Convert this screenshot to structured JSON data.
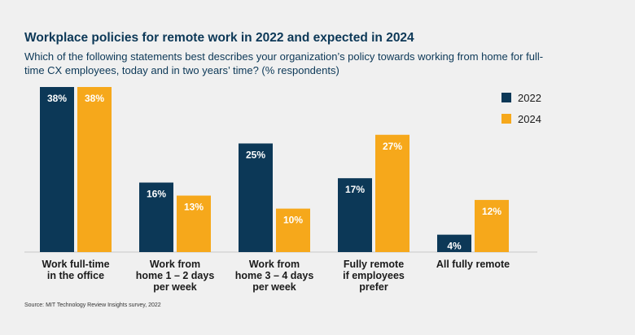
{
  "chart_data": {
    "type": "bar",
    "title": "Workplace policies for remote work in 2022 and expected in 2024",
    "subtitle": "Which of the following statements best describes your organization’s policy towards working from home for full-time CX employees, today and in two years’ time? (% respondents)",
    "categories": [
      "Work full-time\nin the office",
      "Work from\nhome 1 – 2 days\nper week",
      "Work from\nhome 3 – 4 days\nper week",
      "Fully remote\nif employees\nprefer",
      "All fully remote"
    ],
    "series": [
      {
        "name": "2022",
        "color": "#0c3857",
        "values": [
          38,
          16,
          25,
          17,
          4
        ],
        "labels": [
          "38%",
          "16%",
          "25%",
          "17%",
          "4%"
        ]
      },
      {
        "name": "2024",
        "color": "#f6a81b",
        "values": [
          38,
          13,
          10,
          27,
          12
        ],
        "labels": [
          "38%",
          "13%",
          "10%",
          "27%",
          "12%"
        ]
      }
    ],
    "ylim": [
      0,
      38
    ],
    "xlabel": "",
    "ylabel": "",
    "legend_position": "top-right",
    "grid": false
  },
  "source": "Source: MIT Technology Review Insights survey, 2022"
}
